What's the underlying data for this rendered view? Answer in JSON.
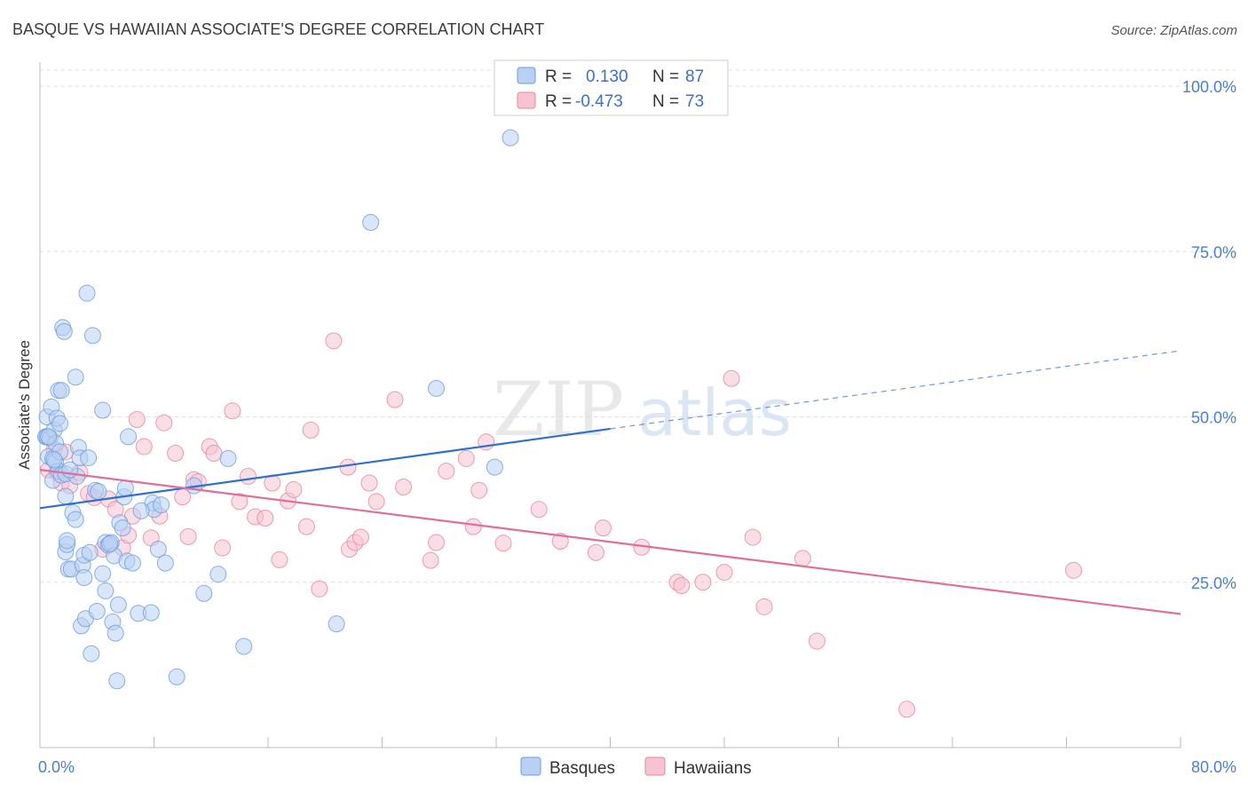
{
  "title": "BASQUE VS HAWAIIAN ASSOCIATE'S DEGREE CORRELATION CHART",
  "source": "Source: ZipAtlas.com",
  "watermark": {
    "zip": "ZIP",
    "atlas": "atlas"
  },
  "legend_top": [
    {
      "r_label": "R =",
      "r_value": "0.130",
      "n_label": "N =",
      "n_value": "87"
    },
    {
      "r_label": "R =",
      "r_value": "-0.473",
      "n_label": "N =",
      "n_value": "73"
    }
  ],
  "colors": {
    "blue": "#6a9de0",
    "blue_fill": "#b9d0f3",
    "blue_line": "#2f6fd0",
    "pink": "#e8839f",
    "pink_fill": "#f6c3d2",
    "pink_line": "#e06f98",
    "grid": "#dddddd",
    "axis": "#bbbbbb"
  },
  "chart_data": {
    "type": "scatter",
    "title": "BASQUE VS HAWAIIAN ASSOCIATE'S DEGREE CORRELATION CHART",
    "xlabel": "",
    "ylabel": "Associate's Degree",
    "xlim": [
      0,
      80
    ],
    "ylim": [
      0,
      102
    ],
    "x_tick_labels": [
      "0.0%",
      "80.0%"
    ],
    "y_ticks": [
      25,
      50,
      75,
      100
    ],
    "y_tick_labels": [
      "25.0%",
      "50.0%",
      "75.0%",
      "100.0%"
    ],
    "grid": true,
    "series": [
      {
        "name": "Basques",
        "R": 0.13,
        "N": 87,
        "trend": {
          "x0": 0,
          "y0": 36.2,
          "x1": 40,
          "y1": 48.2,
          "dash_x1": 80,
          "dash_y1": 60.0
        },
        "points": [
          [
            0.4,
            47.0
          ],
          [
            0.5,
            50.0
          ],
          [
            0.5,
            47.0
          ],
          [
            0.6,
            44.0
          ],
          [
            0.7,
            46.8
          ],
          [
            0.8,
            51.5
          ],
          [
            0.9,
            40.4
          ],
          [
            0.9,
            43.7
          ],
          [
            1.0,
            48.0
          ],
          [
            1.1,
            43.2
          ],
          [
            1.1,
            46.0
          ],
          [
            1.2,
            49.8
          ],
          [
            1.3,
            54.0
          ],
          [
            1.3,
            41.8
          ],
          [
            1.4,
            49.0
          ],
          [
            1.4,
            44.7
          ],
          [
            1.5,
            41.2
          ],
          [
            1.5,
            54.0
          ],
          [
            1.6,
            63.5
          ],
          [
            1.7,
            62.9
          ],
          [
            1.8,
            41.4
          ],
          [
            1.8,
            38.0
          ],
          [
            1.8,
            29.6
          ],
          [
            1.9,
            30.7
          ],
          [
            1.9,
            31.3
          ],
          [
            2.0,
            27.0
          ],
          [
            2.2,
            27.0
          ],
          [
            2.3,
            35.5
          ],
          [
            2.5,
            56.0
          ],
          [
            2.5,
            34.5
          ],
          [
            2.6,
            41.0
          ],
          [
            2.7,
            45.4
          ],
          [
            2.8,
            43.8
          ],
          [
            2.9,
            18.4
          ],
          [
            3.0,
            27.6
          ],
          [
            3.1,
            25.7
          ],
          [
            3.1,
            29.1
          ],
          [
            3.2,
            19.5
          ],
          [
            3.3,
            68.7
          ],
          [
            3.4,
            43.8
          ],
          [
            3.6,
            14.2
          ],
          [
            3.7,
            62.3
          ],
          [
            3.9,
            38.9
          ],
          [
            4.0,
            20.6
          ],
          [
            4.1,
            38.7
          ],
          [
            4.4,
            51.0
          ],
          [
            4.4,
            26.3
          ],
          [
            4.6,
            23.7
          ],
          [
            4.6,
            31.0
          ],
          [
            4.8,
            30.6
          ],
          [
            5.0,
            31.0
          ],
          [
            5.1,
            19.0
          ],
          [
            5.2,
            29.0
          ],
          [
            5.3,
            17.3
          ],
          [
            5.4,
            10.1
          ],
          [
            5.5,
            21.6
          ],
          [
            5.6,
            34.0
          ],
          [
            5.8,
            33.2
          ],
          [
            5.9,
            37.9
          ],
          [
            6.0,
            39.2
          ],
          [
            6.1,
            28.2
          ],
          [
            6.2,
            47.0
          ],
          [
            6.5,
            27.9
          ],
          [
            6.9,
            20.3
          ],
          [
            7.8,
            20.4
          ],
          [
            7.9,
            37.0
          ],
          [
            8.0,
            36.0
          ],
          [
            8.3,
            30.0
          ],
          [
            8.5,
            36.7
          ],
          [
            8.8,
            27.9
          ],
          [
            9.6,
            10.7
          ],
          [
            10.8,
            39.6
          ],
          [
            11.5,
            23.3
          ],
          [
            12.5,
            26.2
          ],
          [
            13.2,
            43.7
          ],
          [
            14.3,
            15.3
          ],
          [
            20.8,
            18.7
          ],
          [
            23.2,
            79.4
          ],
          [
            27.8,
            54.3
          ],
          [
            31.9,
            42.4
          ],
          [
            33.0,
            92.2
          ],
          [
            1.0,
            43.5
          ],
          [
            2.1,
            42.0
          ],
          [
            3.5,
            29.5
          ],
          [
            4.9,
            30.8
          ],
          [
            7.1,
            35.8
          ],
          [
            0.6,
            47.0
          ]
        ]
      },
      {
        "name": "Hawaiians",
        "R": -0.473,
        "N": 73,
        "trend": {
          "x0": 0,
          "y0": 42.0,
          "x1": 80,
          "y1": 20.2
        },
        "points": [
          [
            0.6,
            42.0
          ],
          [
            1.0,
            45.1
          ],
          [
            1.2,
            41.6
          ],
          [
            1.5,
            40.0
          ],
          [
            1.8,
            44.7
          ],
          [
            2.1,
            39.6
          ],
          [
            2.8,
            41.6
          ],
          [
            3.4,
            38.4
          ],
          [
            3.8,
            37.8
          ],
          [
            4.4,
            30.0
          ],
          [
            4.8,
            37.6
          ],
          [
            5.3,
            36.0
          ],
          [
            5.8,
            30.2
          ],
          [
            6.2,
            32.1
          ],
          [
            6.5,
            35.0
          ],
          [
            6.8,
            49.6
          ],
          [
            7.3,
            45.5
          ],
          [
            7.8,
            31.7
          ],
          [
            8.4,
            35.0
          ],
          [
            8.7,
            49.1
          ],
          [
            9.5,
            44.5
          ],
          [
            10.0,
            37.9
          ],
          [
            10.4,
            31.9
          ],
          [
            10.8,
            40.5
          ],
          [
            11.1,
            40.2
          ],
          [
            11.9,
            45.5
          ],
          [
            12.2,
            44.5
          ],
          [
            12.8,
            30.2
          ],
          [
            13.5,
            50.9
          ],
          [
            14.0,
            37.2
          ],
          [
            14.6,
            41.0
          ],
          [
            15.1,
            34.9
          ],
          [
            15.8,
            34.7
          ],
          [
            16.3,
            40.0
          ],
          [
            16.8,
            28.4
          ],
          [
            17.4,
            37.3
          ],
          [
            17.8,
            39.0
          ],
          [
            18.7,
            33.4
          ],
          [
            19.0,
            48.0
          ],
          [
            19.6,
            24.0
          ],
          [
            20.6,
            61.5
          ],
          [
            21.6,
            42.4
          ],
          [
            21.7,
            30.0
          ],
          [
            22.1,
            31.0
          ],
          [
            22.5,
            31.8
          ],
          [
            23.1,
            40.0
          ],
          [
            23.6,
            37.2
          ],
          [
            24.9,
            52.6
          ],
          [
            25.5,
            39.4
          ],
          [
            27.4,
            28.3
          ],
          [
            27.8,
            31.0
          ],
          [
            28.5,
            41.8
          ],
          [
            29.9,
            43.7
          ],
          [
            30.4,
            33.4
          ],
          [
            30.8,
            38.9
          ],
          [
            31.3,
            46.2
          ],
          [
            32.5,
            30.9
          ],
          [
            35.0,
            36.0
          ],
          [
            36.5,
            31.2
          ],
          [
            39.0,
            29.5
          ],
          [
            39.5,
            33.2
          ],
          [
            42.2,
            30.3
          ],
          [
            44.7,
            25.0
          ],
          [
            45.0,
            24.5
          ],
          [
            46.5,
            25.0
          ],
          [
            48.0,
            26.5
          ],
          [
            48.5,
            55.8
          ],
          [
            50.0,
            31.8
          ],
          [
            50.8,
            21.3
          ],
          [
            53.5,
            28.6
          ],
          [
            54.5,
            16.1
          ],
          [
            60.8,
            5.8
          ],
          [
            72.5,
            26.8
          ]
        ]
      }
    ]
  },
  "bottom_legend": [
    {
      "label": "Basques"
    },
    {
      "label": "Hawaiians"
    }
  ]
}
